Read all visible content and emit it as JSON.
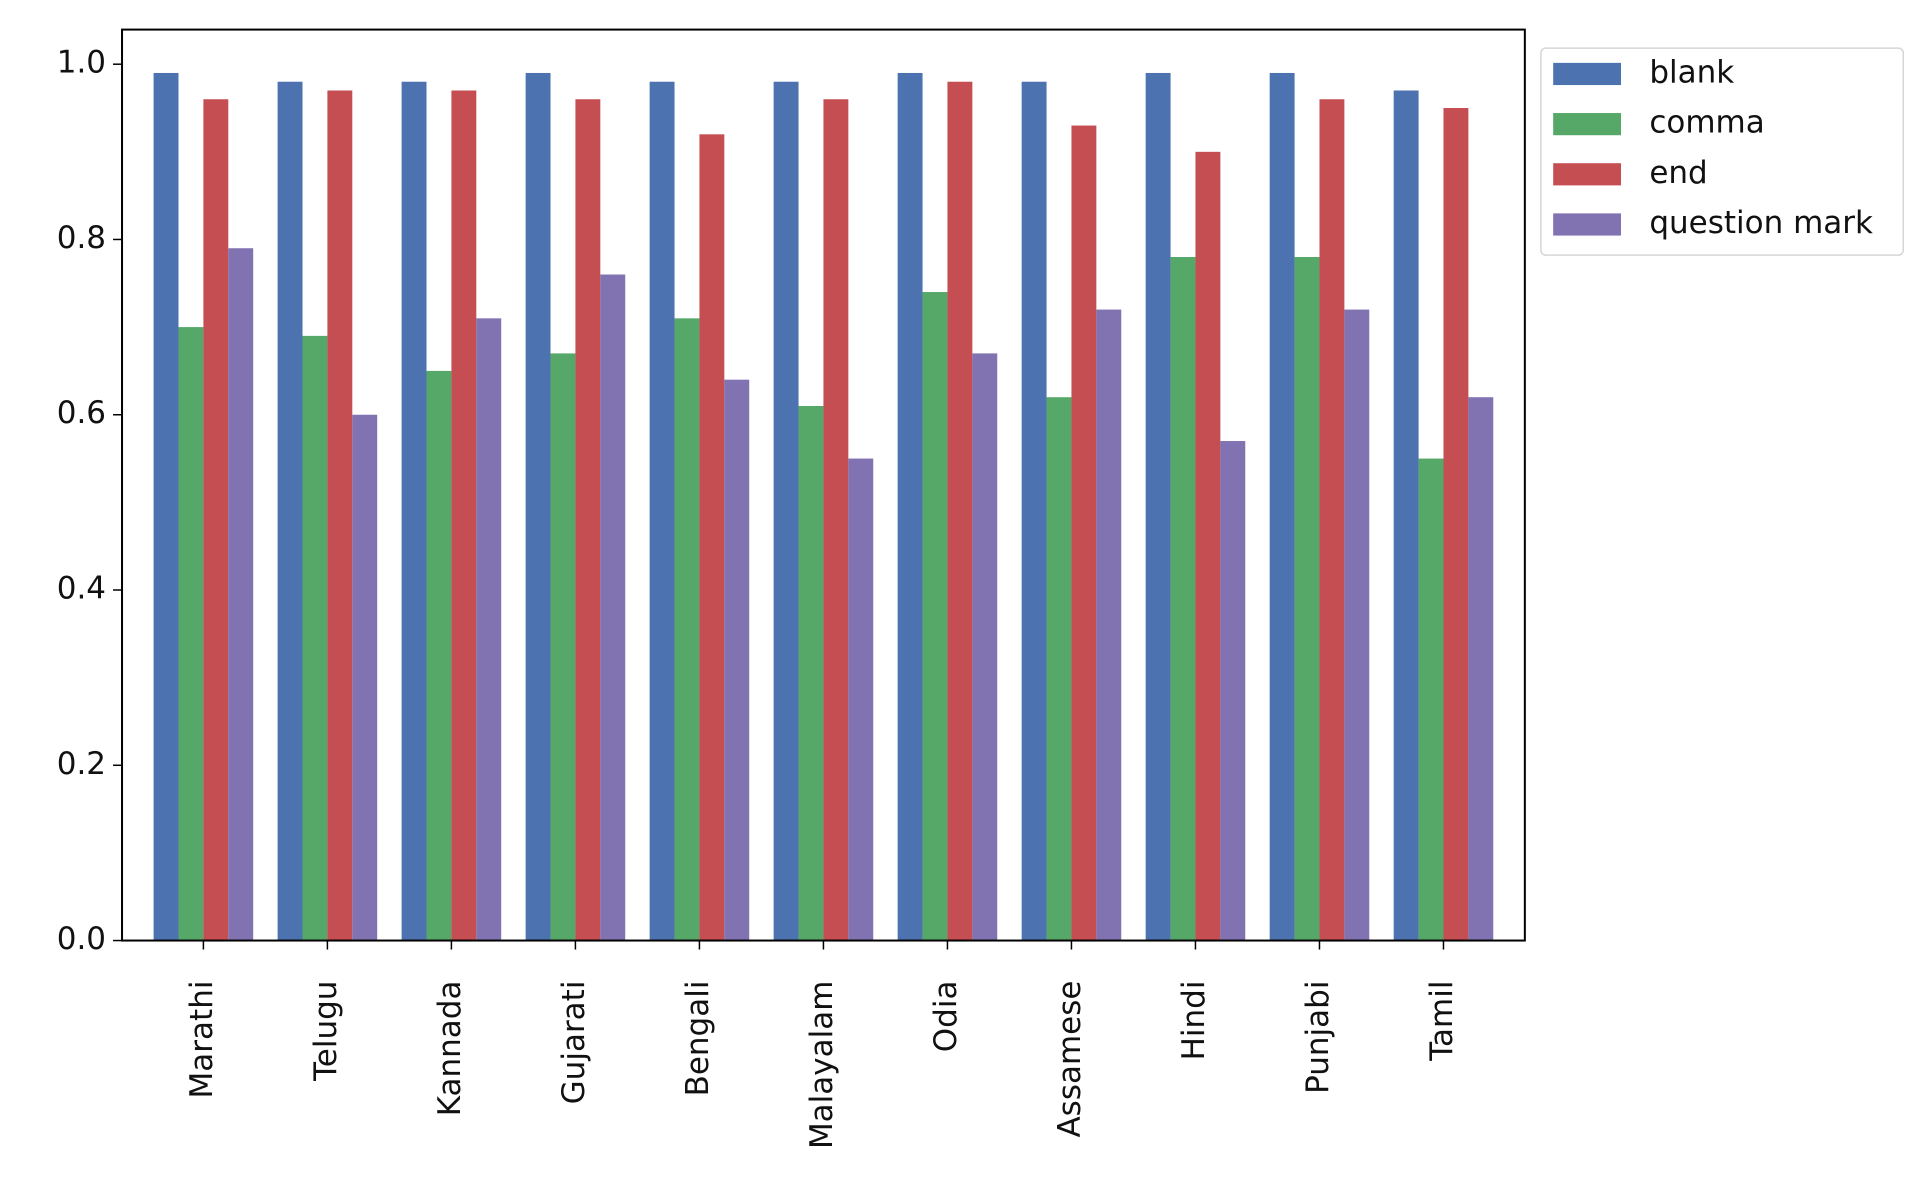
{
  "chart_data": {
    "type": "bar",
    "categories": [
      "Marathi",
      "Telugu",
      "Kannada",
      "Gujarati",
      "Bengali",
      "Malayalam",
      "Odia",
      "Assamese",
      "Hindi",
      "Punjabi",
      "Tamil"
    ],
    "series": [
      {
        "name": "blank",
        "color": "#4c72b0",
        "values": [
          0.99,
          0.98,
          0.98,
          0.99,
          0.98,
          0.98,
          0.99,
          0.98,
          0.99,
          0.99,
          0.97
        ]
      },
      {
        "name": "comma",
        "color": "#55a868",
        "values": [
          0.7,
          0.69,
          0.65,
          0.67,
          0.71,
          0.61,
          0.74,
          0.62,
          0.78,
          0.78,
          0.55
        ]
      },
      {
        "name": "end",
        "color": "#c44e52",
        "values": [
          0.96,
          0.97,
          0.97,
          0.96,
          0.92,
          0.96,
          0.98,
          0.93,
          0.9,
          0.96,
          0.95
        ]
      },
      {
        "name": "question mark",
        "color": "#8172b2",
        "values": [
          0.79,
          0.6,
          0.71,
          0.76,
          0.64,
          0.55,
          0.67,
          0.72,
          0.57,
          0.72,
          0.62
        ]
      }
    ],
    "ylim": [
      0,
      1.0395
    ],
    "yticks": [
      {
        "value": 0,
        "label": "0.0"
      },
      0.2,
      0.4,
      0.6,
      0.8,
      {
        "value": 1,
        "label": "1.0"
      }
    ],
    "grid": false,
    "legend": "outside-upper-right"
  }
}
